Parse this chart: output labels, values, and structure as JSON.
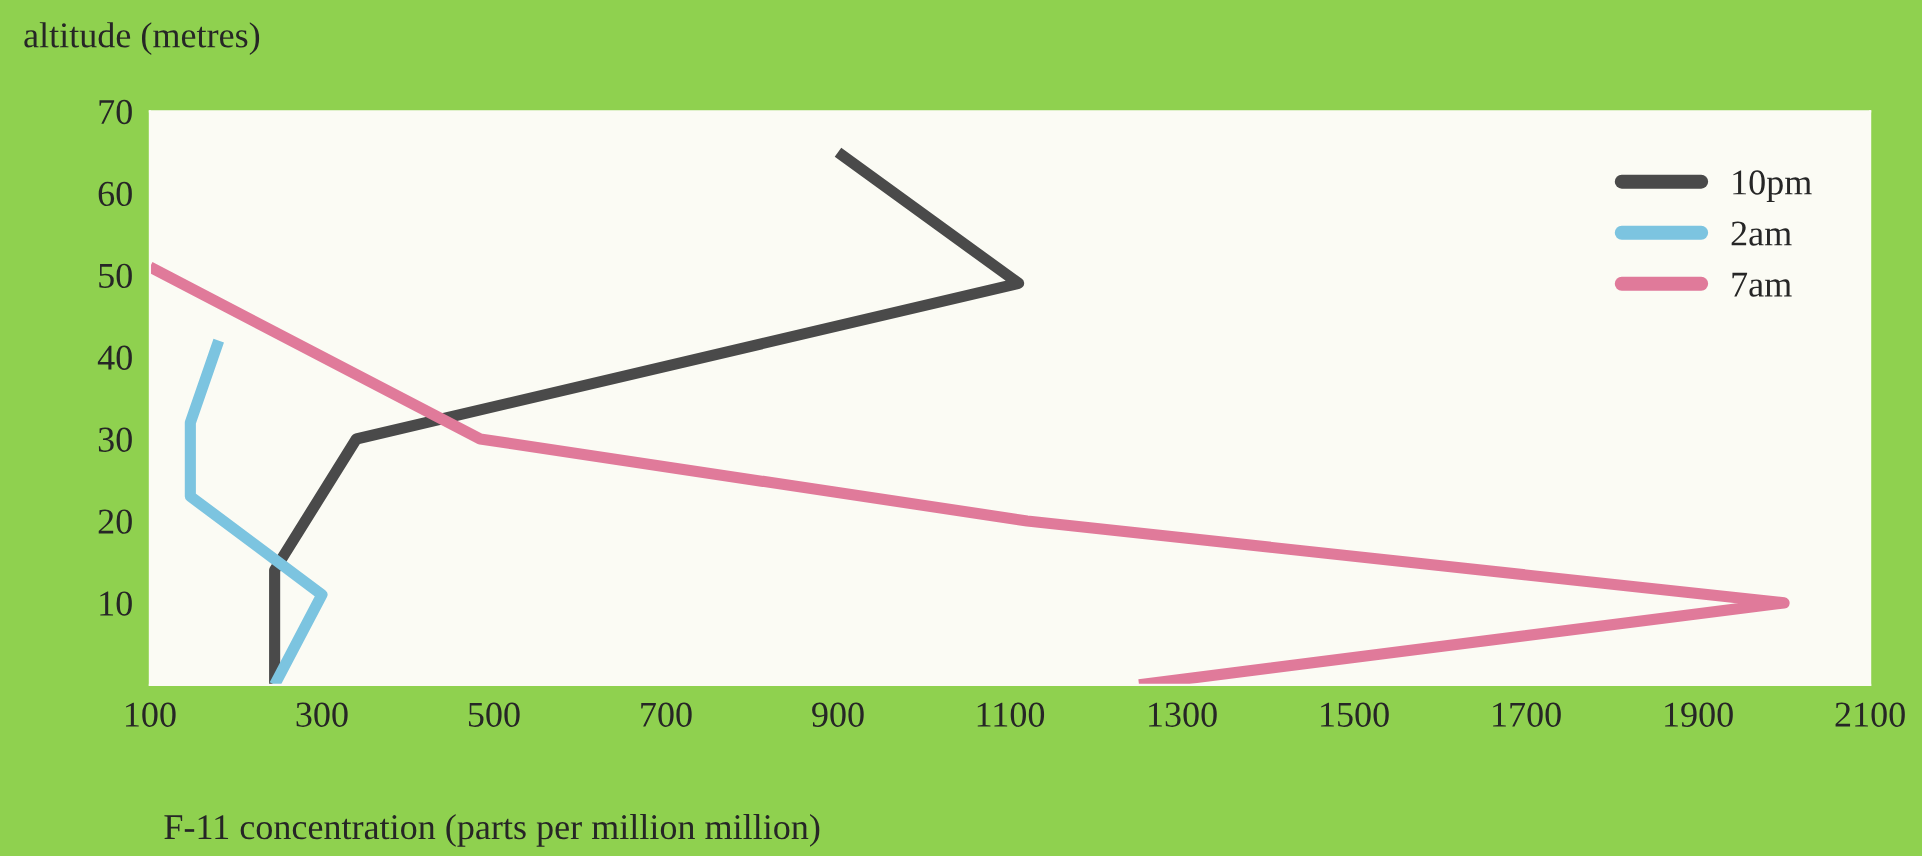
{
  "chart_data": {
    "type": "line",
    "ylabel": "altitude (metres)",
    "xlabel": "F-11 concentration (parts per million million)",
    "xlim": [
      100,
      2100
    ],
    "xticks": [
      100,
      300,
      500,
      700,
      900,
      1100,
      1300,
      1500,
      1700,
      1900,
      2100
    ],
    "ylim": [
      0,
      70
    ],
    "yticks": [
      10,
      20,
      30,
      40,
      50,
      60,
      70
    ],
    "grid": false,
    "legend": "top right",
    "marker": "none",
    "line_style": "solid",
    "series": [
      {
        "name": "10pm",
        "color": "#4a4a4a",
        "x": [
          900,
          1110,
          340,
          245,
          245
        ],
        "values": [
          65,
          49,
          30,
          14,
          0
        ]
      },
      {
        "name": "2am",
        "color": "#7cc4e0",
        "x": [
          180,
          147,
          147,
          300,
          245
        ],
        "values": [
          42,
          32,
          23,
          11,
          0
        ]
      },
      {
        "name": "7am",
        "color": "#e07a9a",
        "x": [
          100,
          484,
          1120,
          2000,
          1250
        ],
        "values": [
          51,
          30,
          20,
          10,
          0
        ]
      }
    ]
  }
}
